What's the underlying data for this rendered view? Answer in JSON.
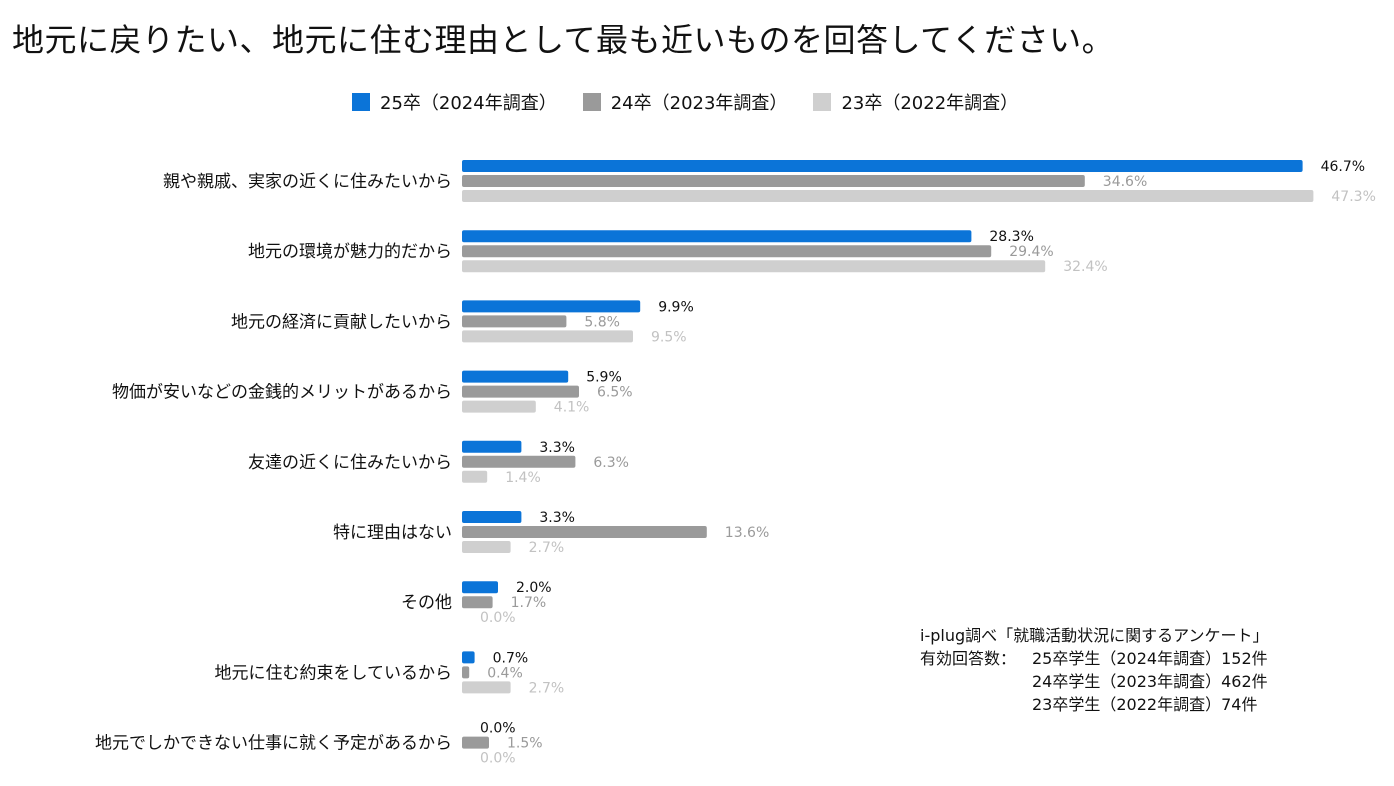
{
  "title": "地元に戻りたい、地元に住む理由として最も近いものを回答してください。",
  "colors": {
    "s25": "#0b74d8",
    "s24": "#9a9a9a",
    "s23": "#cfcfcf",
    "label25": "#111111",
    "label24": "#9a9a9a",
    "label23": "#c2c2c2"
  },
  "chart_data": {
    "type": "bar",
    "orientation": "horizontal",
    "title": "地元に戻りたい、地元に住む理由として最も近いものを回答してください。",
    "xlim": [
      0,
      50
    ],
    "grid": false,
    "legend_position": "top",
    "categories": [
      "親や親戚、実家の近くに住みたいから",
      "地元の環境が魅力的だから",
      "地元の経済に貢献したいから",
      "物価が安いなどの金銭的メリットがあるから",
      "友達の近くに住みたいから",
      "特に理由はない",
      "その他",
      "地元に住む約束をしているから",
      "地元でしかできない仕事に就く予定があるから"
    ],
    "series": [
      {
        "name": "25卒（2024年調査）",
        "values": [
          46.7,
          28.3,
          9.9,
          5.9,
          3.3,
          3.3,
          2.0,
          0.7,
          0.0
        ],
        "labels": [
          "46.7%",
          "28.3%",
          "9.9%",
          "5.9%",
          "3.3%",
          "3.3%",
          "2.0%",
          "0.7%",
          "0.0%"
        ]
      },
      {
        "name": "24卒（2023年調査）",
        "values": [
          34.6,
          29.4,
          5.8,
          6.5,
          6.3,
          13.6,
          1.7,
          0.4,
          1.5
        ],
        "labels": [
          "34.6%",
          "29.4%",
          "5.8%",
          "6.5%",
          "6.3%",
          "13.6%",
          "1.7%",
          "0.4%",
          "1.5%"
        ]
      },
      {
        "name": "23卒（2022年調査）",
        "values": [
          47.3,
          32.4,
          9.5,
          4.1,
          1.4,
          2.7,
          0.0,
          2.7,
          0.0
        ],
        "labels": [
          "47.3%",
          "32.4%",
          "9.5%",
          "4.1%",
          "1.4%",
          "2.7%",
          "0.0%",
          "2.7%",
          "0.0%"
        ]
      }
    ]
  },
  "note": {
    "source": "i-plug調べ「就職活動状況に関するアンケート」",
    "label": "有効回答数：",
    "lines": [
      "25卒学生（2024年調査）152件",
      "24卒学生（2023年調査）462件",
      "23卒学生（2022年調査）74件"
    ]
  }
}
